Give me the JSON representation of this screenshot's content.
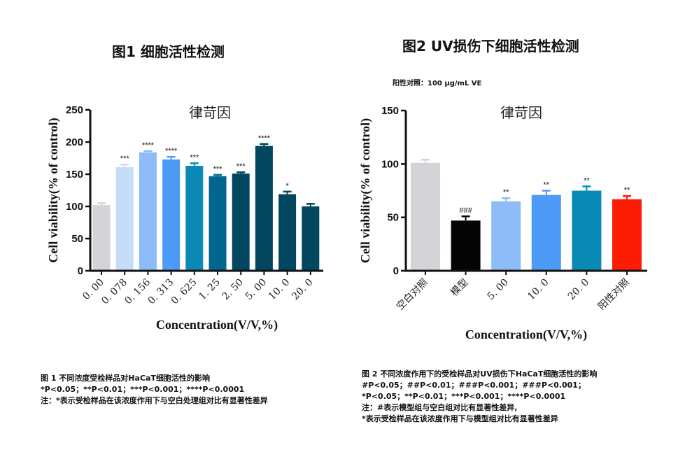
{
  "figure1": {
    "title": "图1  细胞活性检测",
    "caption": [
      "图 1 不同浓度受检样品对HaCaT细胞活性的影响",
      "*P<0.05；**P<0.01；***P<0.001；****P<0.0001",
      "注：*表示受检样品在该浓度作用下与空白处理组对比有显著性差异"
    ]
  },
  "figure2": {
    "title": "图2 UV损伤下细胞活性检测",
    "positive_control_note": "阳性对照：100 μg/mL VE",
    "caption": [
      "图 2 不同浓度作用下的受检样品对UV损伤下HaCaT细胞活性的影响",
      "#P<0.05；##P<0.01；###P<0.001；###P<0.001；",
      "*P<0.05；**P<0.01；***P<0.001；****P<0.0001",
      "注：#表示模型组与空白组对比有显著性差异,",
      "*表示受检样品在该浓度作用下与模型组对比有显著性差异"
    ]
  },
  "chart_data": [
    {
      "type": "bar",
      "title": "律苛因",
      "xlabel": "Concentration(V/V,%)",
      "ylabel": "Cell viability(% of control)",
      "ylim": [
        0,
        250
      ],
      "yticks": [
        0,
        50,
        100,
        150,
        200,
        250
      ],
      "grid": false,
      "categories": [
        "0. 00",
        "0. 078",
        "0. 156",
        "0. 313",
        "0. 625",
        "1. 25",
        "2. 50",
        "5. 00",
        "10. 0",
        "20. 0"
      ],
      "values": [
        102,
        161,
        184,
        173,
        163,
        147,
        151,
        194,
        119,
        100
      ],
      "errors": [
        3,
        4,
        2,
        4,
        4,
        2,
        2,
        3,
        4,
        4
      ],
      "significance": [
        "",
        "***",
        "****",
        "****",
        "***",
        "***",
        "***",
        "****",
        "*",
        ""
      ],
      "colors": [
        "#d4d3d8",
        "#c6dcf7",
        "#8dbcf9",
        "#4d9bf7",
        "#0a89b4",
        "#01668f",
        "#02465f",
        "#02465f",
        "#02465f",
        "#02465f"
      ]
    },
    {
      "type": "bar",
      "title": "律苛因",
      "xlabel": "Concentration(V/V,%)",
      "ylabel": "Cell viability(% of control)",
      "ylim": [
        0,
        150
      ],
      "yticks": [
        0,
        50,
        100,
        150
      ],
      "grid": false,
      "categories": [
        "空白对照",
        "模型",
        "5. 00",
        "10. 0",
        "20. 0",
        "阳性对照"
      ],
      "values": [
        101,
        47,
        65,
        71,
        75,
        67
      ],
      "errors": [
        3,
        4,
        3,
        4,
        4,
        3
      ],
      "significance": [
        "",
        "###",
        "**",
        "**",
        "**",
        "**"
      ],
      "colors": [
        "#d4d3d8",
        "#050505",
        "#8dbcf9",
        "#4d9bf7",
        "#0a89b4",
        "#fd1d05"
      ]
    }
  ]
}
